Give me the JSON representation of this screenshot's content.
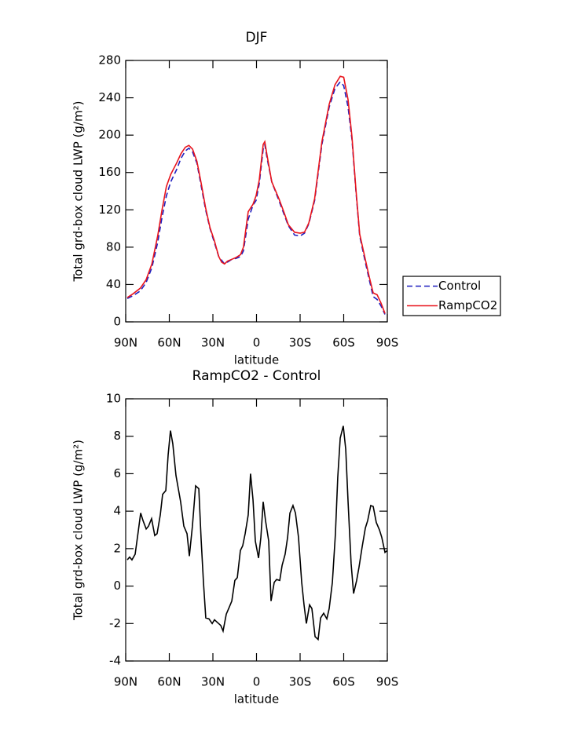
{
  "chart_data": [
    {
      "type": "line",
      "title": "DJF",
      "xlabel": "latitude",
      "ylabel": "Total grd-box cloud LWP (g/m²)",
      "x": [
        88.9,
        85,
        80,
        76,
        72,
        68,
        65,
        62,
        59,
        55,
        52,
        49,
        46.5,
        44,
        41,
        38,
        35,
        32,
        29,
        26,
        24,
        22,
        20,
        17,
        14,
        11,
        9,
        5.7,
        2.4,
        0.3,
        -1.9,
        -4.6,
        -5.7,
        -7.3,
        -10.5,
        -15.4,
        -19,
        -21.9,
        -26.2,
        -30,
        -33,
        -36,
        -40,
        -45,
        -50,
        -54,
        -57.6,
        -60,
        -63,
        -65.7,
        -68.4,
        -71,
        -75,
        -77.6,
        -80.3,
        -83,
        -85.7,
        -88.4
      ],
      "series": [
        {
          "name": "Control",
          "color": "#1f1fbf",
          "style": "dashed",
          "values": [
            25,
            28,
            33,
            42,
            58,
            85,
            112,
            135,
            150,
            163,
            175,
            183,
            186,
            182,
            170,
            145,
            120,
            100,
            85,
            70,
            66,
            62,
            64,
            67,
            68,
            70,
            76,
            110,
            125,
            130,
            148,
            185,
            190,
            175,
            150,
            130,
            115,
            103,
            93,
            92,
            95,
            105,
            130,
            190,
            230,
            250,
            257,
            253,
            230,
            195,
            140,
            92,
            63,
            45,
            27,
            24,
            17,
            8
          ]
        },
        {
          "name": "RampCO2",
          "color": "#e8141c",
          "style": "solid",
          "values": [
            26,
            30,
            36,
            45,
            62,
            92,
            120,
            145,
            158,
            170,
            180,
            187,
            189,
            185,
            172,
            148,
            122,
            101,
            87,
            70,
            64,
            62,
            65,
            67,
            69,
            72,
            80,
            118,
            126,
            135,
            152,
            190,
            193,
            178,
            150,
            132,
            117,
            104,
            96,
            95,
            96,
            106,
            132,
            193,
            233,
            254,
            263,
            262,
            238,
            198,
            142,
            94,
            66,
            48,
            31,
            29,
            20,
            9
          ]
        }
      ],
      "xlim": [
        90,
        -90
      ],
      "xticks": [
        {
          "value": 90,
          "label": "90N"
        },
        {
          "value": 60,
          "label": "60N"
        },
        {
          "value": 30,
          "label": "30N"
        },
        0,
        {
          "value": -30,
          "label": "30S"
        },
        {
          "value": -60,
          "label": "60S"
        },
        {
          "value": -90,
          "label": "90S"
        }
      ],
      "ylim": [
        0,
        280
      ],
      "yticks": [
        0,
        40,
        80,
        120,
        160,
        200,
        240,
        280
      ],
      "legend": "outside-right"
    },
    {
      "type": "line",
      "title": "RampCO2 - Control",
      "xlabel": "latitude",
      "ylabel": "Total grd-box cloud LWP (g/m²)",
      "x": [
        88.9,
        87.3,
        85.7,
        83.5,
        81.4,
        79.7,
        78.1,
        75.9,
        74.3,
        72.2,
        70.0,
        68.4,
        66.2,
        64.6,
        62.4,
        60.8,
        59.2,
        57.6,
        55.4,
        53.8,
        52.2,
        50.0,
        47.8,
        46.2,
        44.1,
        41.9,
        39.7,
        38.1,
        36.5,
        34.9,
        32.7,
        30.5,
        28.9,
        26.8,
        24.6,
        23.0,
        20.8,
        18.6,
        17.0,
        14.9,
        13.2,
        11.1,
        9.5,
        7.8,
        5.7,
        4.1,
        2.4,
        0.8,
        -1.4,
        -3.0,
        -4.6,
        -6.2,
        -8.4,
        -10.0,
        -12.2,
        -13.8,
        -16.0,
        -17.6,
        -19.7,
        -21.4,
        -23.0,
        -25.1,
        -26.8,
        -28.9,
        -31.1,
        -32.7,
        -34.3,
        -36.5,
        -38.1,
        -40.3,
        -42.4,
        -44.1,
        -46.2,
        -48.4,
        -50.0,
        -52.2,
        -54.3,
        -55.9,
        -57.6,
        -59.7,
        -61.4,
        -63.0,
        -65.1,
        -66.8,
        -68.9,
        -70.5,
        -72.7,
        -74.9,
        -76.5,
        -78.6,
        -80.3,
        -82.4,
        -84.6,
        -86.2,
        -88.4,
        -90.0
      ],
      "series": [
        {
          "name": "RampCO2 - Control",
          "color": "#000000",
          "style": "solid",
          "values": [
            1.4,
            1.55,
            1.4,
            1.7,
            2.9,
            3.9,
            3.5,
            3.05,
            3.2,
            3.6,
            2.7,
            2.8,
            3.8,
            4.9,
            5.1,
            7.0,
            8.3,
            7.6,
            5.9,
            5.2,
            4.5,
            3.2,
            2.8,
            1.6,
            3.2,
            5.35,
            5.2,
            2.5,
            0.2,
            -1.7,
            -1.75,
            -2.0,
            -1.8,
            -1.95,
            -2.1,
            -2.4,
            -1.5,
            -1.1,
            -0.8,
            0.3,
            0.45,
            1.9,
            2.15,
            2.8,
            3.8,
            6.0,
            4.6,
            2.4,
            1.5,
            2.6,
            4.5,
            3.5,
            2.4,
            -0.8,
            0.2,
            0.35,
            0.3,
            1.1,
            1.7,
            2.6,
            3.9,
            4.3,
            3.9,
            2.6,
            0.2,
            -1.0,
            -2.0,
            -1.0,
            -1.2,
            -2.7,
            -2.85,
            -1.7,
            -1.45,
            -1.75,
            -1.2,
            0.2,
            2.8,
            5.8,
            7.9,
            8.55,
            7.3,
            4.5,
            1.2,
            -0.4,
            0.3,
            1.0,
            2.1,
            3.1,
            3.5,
            4.3,
            4.25,
            3.4,
            3.0,
            2.6,
            1.8,
            1.9
          ]
        }
      ],
      "xlim": [
        90,
        -90
      ],
      "xticks": [
        {
          "value": 90,
          "label": "90N"
        },
        {
          "value": 60,
          "label": "60N"
        },
        {
          "value": 30,
          "label": "30N"
        },
        0,
        {
          "value": -30,
          "label": "30S"
        },
        {
          "value": -60,
          "label": "60S"
        },
        {
          "value": -90,
          "label": "90S"
        }
      ],
      "ylim": [
        -4,
        10
      ],
      "yticks": [
        -4,
        -2,
        0,
        2,
        4,
        6,
        8,
        10
      ]
    }
  ]
}
